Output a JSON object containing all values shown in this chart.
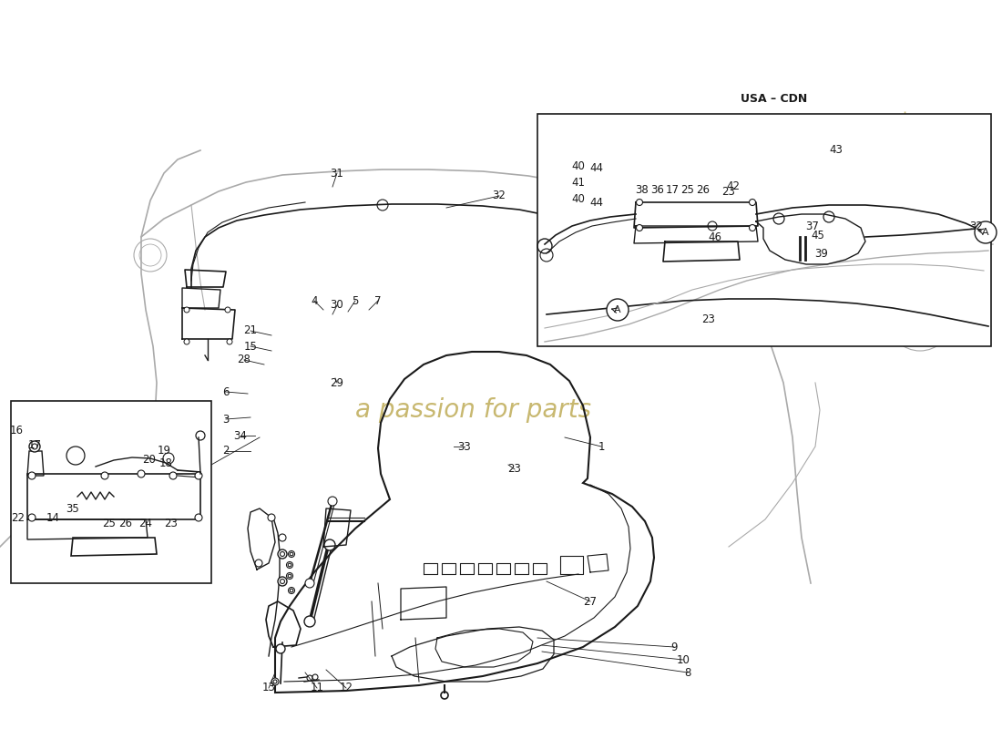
{
  "bg": "#ffffff",
  "lc": "#1a1a1a",
  "llc": "#aaaaaa",
  "mlc": "#555555",
  "wm_color": "#c8b870",
  "wm_text": "a passion for parts",
  "usa_cdn": "USA – CDN",
  "font_size": 8.5,
  "main_labels": [
    [
      "1",
      660,
      490,
      620,
      480
    ],
    [
      "2",
      248,
      495,
      275,
      495
    ],
    [
      "3",
      248,
      460,
      275,
      458
    ],
    [
      "4",
      345,
      330,
      355,
      340
    ],
    [
      "5",
      390,
      330,
      382,
      342
    ],
    [
      "6",
      248,
      430,
      272,
      432
    ],
    [
      "7",
      415,
      330,
      405,
      340
    ],
    [
      "8",
      755,
      738,
      595,
      715
    ],
    [
      "9",
      740,
      710,
      590,
      700
    ],
    [
      "10",
      750,
      724,
      595,
      708
    ],
    [
      "11",
      348,
      755,
      335,
      738
    ],
    [
      "12",
      380,
      755,
      358,
      735
    ],
    [
      "13",
      295,
      755,
      302,
      738
    ],
    [
      "15",
      275,
      380,
      298,
      385
    ],
    [
      "21",
      275,
      363,
      298,
      368
    ],
    [
      "23",
      565,
      515,
      558,
      510
    ],
    [
      "27",
      648,
      660,
      600,
      638
    ],
    [
      "28",
      268,
      395,
      290,
      400
    ],
    [
      "29",
      370,
      420,
      368,
      415
    ],
    [
      "30",
      370,
      335,
      365,
      345
    ],
    [
      "31",
      370,
      190,
      365,
      205
    ],
    [
      "32",
      548,
      215,
      490,
      228
    ],
    [
      "33",
      510,
      490,
      498,
      490
    ],
    [
      "34",
      264,
      478,
      280,
      478
    ]
  ],
  "inset1_labels": [
    [
      "22",
      20,
      568,
      38,
      558
    ],
    [
      "14",
      58,
      568,
      68,
      558
    ],
    [
      "35",
      80,
      558,
      85,
      548
    ],
    [
      "25",
      120,
      575,
      122,
      562
    ],
    [
      "26",
      138,
      575,
      140,
      560
    ],
    [
      "24",
      160,
      575,
      158,
      560
    ],
    [
      "23",
      188,
      575,
      182,
      558
    ],
    [
      "18",
      182,
      508,
      175,
      518
    ],
    [
      "20",
      164,
      505,
      165,
      518
    ],
    [
      "19",
      180,
      495,
      172,
      512
    ],
    [
      "17",
      38,
      488,
      48,
      498
    ],
    [
      "16",
      18,
      472,
      30,
      482
    ]
  ],
  "inset2_labels": [
    [
      "23",
      778,
      350,
      758,
      335
    ],
    [
      "32",
      1072,
      248,
      1065,
      255
    ],
    [
      "37",
      892,
      248,
      882,
      258
    ],
    [
      "39",
      902,
      278,
      888,
      270
    ],
    [
      "45",
      898,
      258,
      878,
      252
    ],
    [
      "46",
      785,
      260,
      778,
      255
    ],
    [
      "40",
      635,
      218,
      648,
      222
    ],
    [
      "40",
      635,
      182,
      648,
      188
    ],
    [
      "41",
      635,
      200,
      648,
      205
    ],
    [
      "42",
      805,
      205,
      800,
      215
    ],
    [
      "43",
      918,
      165,
      910,
      178
    ],
    [
      "44",
      655,
      222,
      668,
      220
    ],
    [
      "44",
      655,
      185,
      668,
      190
    ],
    [
      "38",
      705,
      208,
      712,
      215
    ],
    [
      "36",
      722,
      208,
      728,
      215
    ],
    [
      "17",
      738,
      208,
      742,
      215
    ],
    [
      "25",
      755,
      208,
      758,
      215
    ],
    [
      "26",
      772,
      208,
      775,
      215
    ],
    [
      "23",
      800,
      210,
      800,
      218
    ]
  ]
}
